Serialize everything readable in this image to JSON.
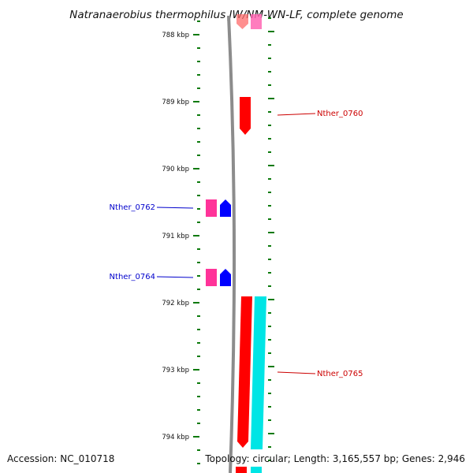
{
  "title": "Natranaerobius thermophilus JW/NM-WN-LF, complete genome",
  "accession": "Accession: NC_010718",
  "topology": "Topology: circular; Length: 3,165,557 bp; Genes: 2,946",
  "colors": {
    "backbone": "#8c8c8c",
    "tick": "#0b7a0b",
    "forward_gene": "#ff0000",
    "reverse_gene": "#0000ff",
    "cds_pink": "#ff3399",
    "cyan_feature": "#00e5e5",
    "label_red": "#cc0000",
    "label_blue": "#0000cc"
  },
  "scale_labels": [
    {
      "kbp": 788,
      "text": "788 kbp"
    },
    {
      "kbp": 789,
      "text": "789 kbp"
    },
    {
      "kbp": 790,
      "text": "790 kbp"
    },
    {
      "kbp": 791,
      "text": "791 kbp"
    },
    {
      "kbp": 792,
      "text": "792 kbp"
    },
    {
      "kbp": 793,
      "text": "793 kbp"
    },
    {
      "kbp": 794,
      "text": "794 kbp"
    }
  ],
  "gene_labels": [
    {
      "text": "Nther_0760",
      "strand": "forward",
      "kbp": 789.18
    },
    {
      "text": "Nther_0762",
      "strand": "reverse",
      "kbp": 790.58
    },
    {
      "text": "Nther_0764",
      "strand": "reverse",
      "kbp": 791.58
    },
    {
      "text": "Nther_0765",
      "strand": "forward",
      "kbp": 793.05
    }
  ]
}
